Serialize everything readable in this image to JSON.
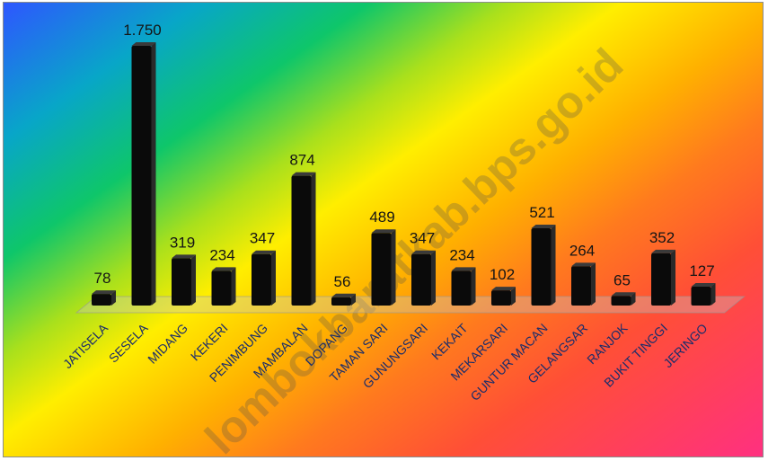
{
  "chart_data": {
    "type": "bar",
    "categories": [
      "JATISELA",
      "SESELA",
      "MIDANG",
      "KEKERI",
      "PENIMBUNG",
      "MAMBALAN",
      "DOPANG",
      "TAMAN SARI",
      "GUNUNGSARI",
      "KEKAIT",
      "MEKARSARI",
      "GUNTUR MACAN",
      "GELANGSAR",
      "RANJOK",
      "BUKIT TINGGI",
      "JERINGO"
    ],
    "values": [
      78,
      1750,
      319,
      234,
      347,
      874,
      56,
      489,
      347,
      234,
      102,
      521,
      264,
      65,
      352,
      127
    ],
    "value_labels": [
      "78",
      "1.750",
      "319",
      "234",
      "347",
      "874",
      "56",
      "489",
      "347",
      "234",
      "102",
      "521",
      "264",
      "65",
      "352",
      "127"
    ],
    "title": "",
    "xlabel": "",
    "ylabel": "",
    "ylim": [
      0,
      1750
    ],
    "grid": false,
    "legend": "none",
    "colors": {
      "bar": "#0a0a0a",
      "value_label": "#151515",
      "category_label": "#1a2d6b"
    }
  },
  "watermark": "lombokbaratkab.bps.go.id"
}
